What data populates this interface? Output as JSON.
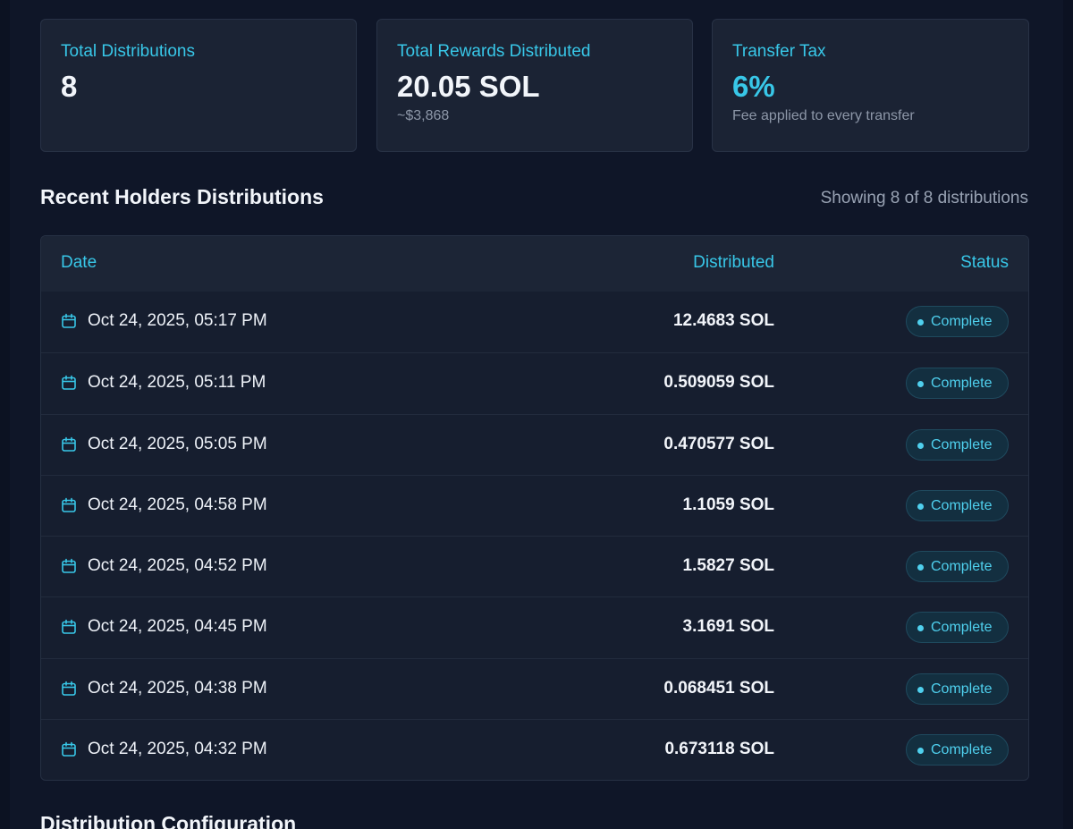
{
  "stats": [
    {
      "label": "Total Distributions",
      "value": "8",
      "sub": ""
    },
    {
      "label": "Total Rewards Distributed",
      "value": "20.05 SOL",
      "sub": "~$3,868"
    },
    {
      "label": "Transfer Tax",
      "value": "6%",
      "sub": "Fee applied to every transfer"
    }
  ],
  "section": {
    "title": "Recent Holders Distributions",
    "showing": "Showing 8 of 8 distributions"
  },
  "table": {
    "headers": {
      "date": "Date",
      "distributed": "Distributed",
      "status": "Status"
    },
    "rows": [
      {
        "date": "Oct 24, 2025, 05:17 PM",
        "amount": "12.4683 SOL",
        "status": "Complete"
      },
      {
        "date": "Oct 24, 2025, 05:11 PM",
        "amount": "0.509059 SOL",
        "status": "Complete"
      },
      {
        "date": "Oct 24, 2025, 05:05 PM",
        "amount": "0.470577 SOL",
        "status": "Complete"
      },
      {
        "date": "Oct 24, 2025, 04:58 PM",
        "amount": "1.1059 SOL",
        "status": "Complete"
      },
      {
        "date": "Oct 24, 2025, 04:52 PM",
        "amount": "1.5827 SOL",
        "status": "Complete"
      },
      {
        "date": "Oct 24, 2025, 04:45 PM",
        "amount": "3.1691 SOL",
        "status": "Complete"
      },
      {
        "date": "Oct 24, 2025, 04:38 PM",
        "amount": "0.068451 SOL",
        "status": "Complete"
      },
      {
        "date": "Oct 24, 2025, 04:32 PM",
        "amount": "0.673118 SOL",
        "status": "Complete"
      }
    ]
  },
  "next_section": {
    "title": "Distribution Configuration"
  },
  "colors": {
    "accent": "#38c7e8",
    "background": "#0f1628",
    "card": "#1b2334"
  },
  "icons": {
    "row_icon": "calendar-icon",
    "status_icon": "status-dot-icon"
  }
}
